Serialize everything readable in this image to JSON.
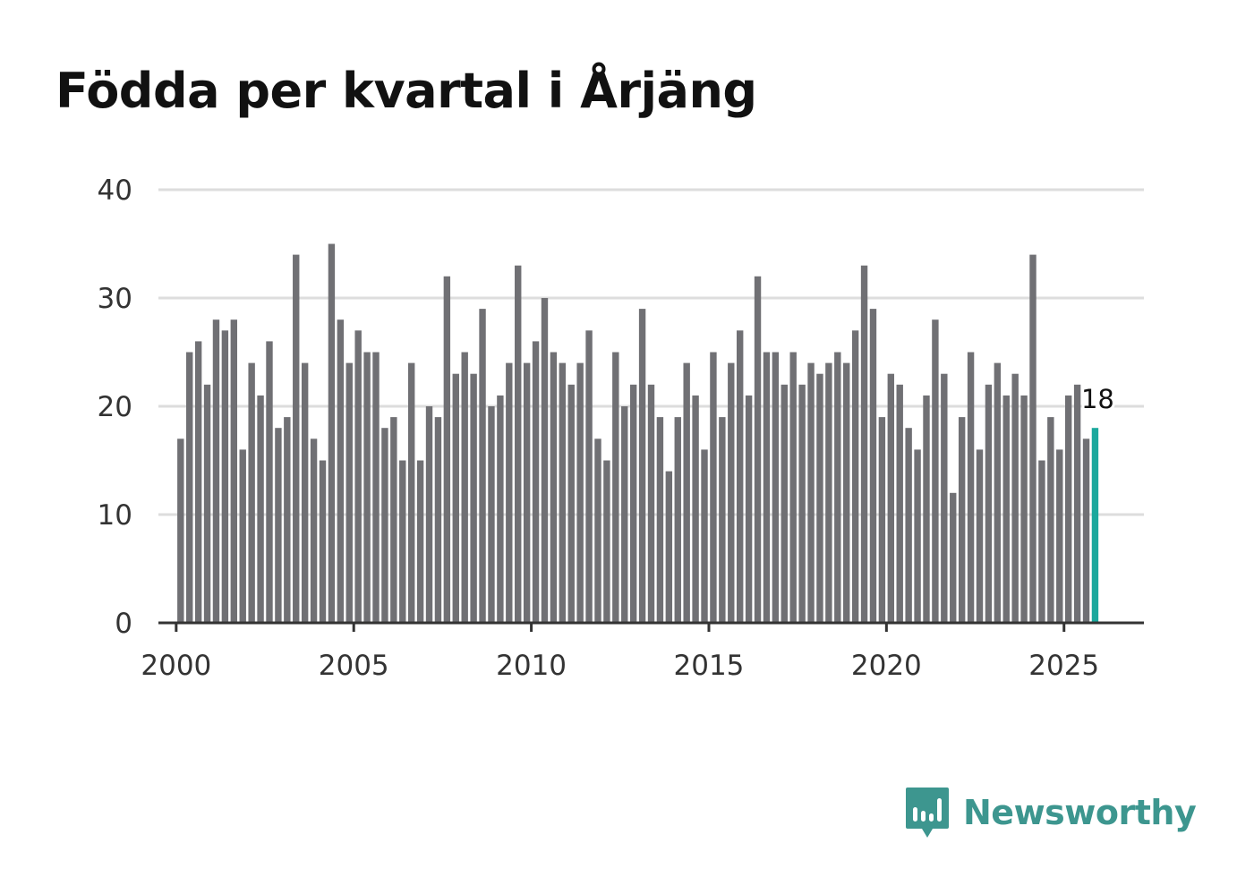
{
  "title": "Födda per kvartal i Årjäng",
  "brand": {
    "name": "Newsworthy",
    "icon": "bar-chart-speech-bubble-icon",
    "color": "#3d968f"
  },
  "colors": {
    "bar": "#707074",
    "highlight": "#1ba89d",
    "grid": "#dddddd",
    "axis": "#333333"
  },
  "chart_data": {
    "type": "bar",
    "title": "Födda per kvartal i Årjäng",
    "xlabel": "",
    "ylabel": "",
    "ylim": [
      0,
      40
    ],
    "yticks": [
      0,
      10,
      20,
      30,
      40
    ],
    "xticks": [
      2000,
      2005,
      2010,
      2015,
      2020,
      2025
    ],
    "xlim": [
      1999.5,
      2027.25
    ],
    "grid": true,
    "start_year": 2000,
    "highlight_last": true,
    "last_value_label": "18",
    "values": [
      17,
      25,
      26,
      22,
      28,
      27,
      28,
      16,
      24,
      21,
      26,
      18,
      19,
      34,
      24,
      17,
      15,
      35,
      28,
      24,
      27,
      25,
      25,
      18,
      19,
      15,
      24,
      15,
      20,
      19,
      32,
      23,
      25,
      23,
      29,
      20,
      21,
      24,
      33,
      24,
      26,
      30,
      25,
      24,
      22,
      24,
      27,
      17,
      15,
      25,
      20,
      22,
      29,
      22,
      19,
      14,
      19,
      24,
      21,
      16,
      25,
      19,
      24,
      27,
      21,
      32,
      25,
      25,
      22,
      25,
      22,
      24,
      23,
      24,
      25,
      24,
      27,
      33,
      29,
      19,
      23,
      22,
      18,
      16,
      21,
      28,
      23,
      12,
      19,
      25,
      16,
      22,
      24,
      21,
      23,
      21,
      34,
      15,
      19,
      16,
      21,
      22,
      17,
      18
    ]
  }
}
